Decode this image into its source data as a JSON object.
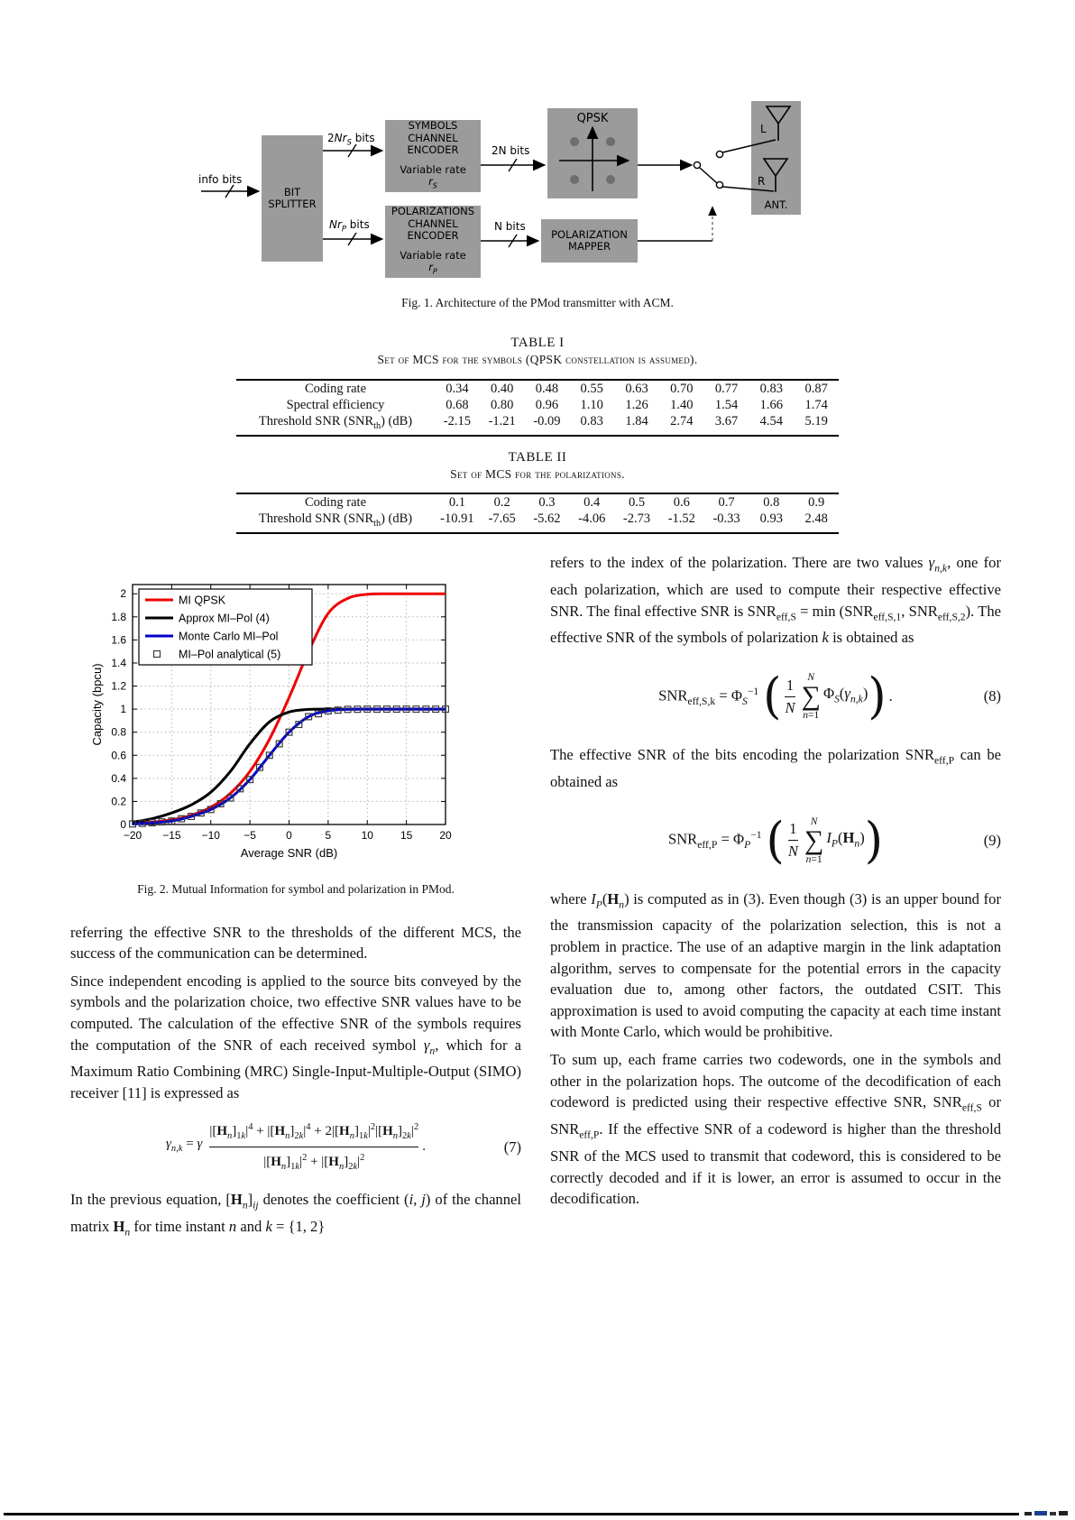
{
  "figure1": {
    "caption": "Fig. 1.   Architecture of the PMod transmitter with ACM.",
    "info_bits": "info bits",
    "bit_splitter": "BIT<br>SPLITTER",
    "enc_sym_name": "SYMBOLS<br>CHANNEL<br>ENCODER",
    "enc_sym_rate": "Variable rate<br><i>r<sub>S</sub></i>",
    "enc_pol_name": "POLARIZATIONS<br>CHANNEL<br>ENCODER",
    "enc_pol_rate": "Variable rate<br><i>r<sub>P</sub></i>",
    "qpsk": "QPSK",
    "pol_mapper": "POLARIZATION<br>MAPPER",
    "bits_2nrs": "2<i>Nr<sub>S</sub></i> bits",
    "bits_2n": "2N bits",
    "bits_nrp": "<i>Nr<sub>P</sub></i> bits",
    "bits_n": "N bits",
    "ant": "ANT.",
    "ant_l": "L",
    "ant_r": "R"
  },
  "table1": {
    "title": "TABLE I",
    "subtitle": "Set of MCS for the symbols (QPSK constellation is assumed).",
    "rows": [
      {
        "label": "Coding rate",
        "values": [
          "0.34",
          "0.40",
          "0.48",
          "0.55",
          "0.63",
          "0.70",
          "0.77",
          "0.83",
          "0.87"
        ]
      },
      {
        "label": "Spectral efficiency",
        "values": [
          "0.68",
          "0.80",
          "0.96",
          "1.10",
          "1.26",
          "1.40",
          "1.54",
          "1.66",
          "1.74"
        ]
      },
      {
        "label": "Threshold SNR (SNR<sub>th</sub>) (dB)",
        "values": [
          "-2.15",
          "-1.21",
          "-0.09",
          "0.83",
          "1.84",
          "2.74",
          "3.67",
          "4.54",
          "5.19"
        ]
      }
    ]
  },
  "table2": {
    "title": "TABLE II",
    "subtitle": "Set of MCS for the polarizations.",
    "rows": [
      {
        "label": "Coding rate",
        "values": [
          "0.1",
          "0.2",
          "0.3",
          "0.4",
          "0.5",
          "0.6",
          "0.7",
          "0.8",
          "0.9"
        ]
      },
      {
        "label": "Threshold SNR (SNR<sub>th</sub>) (dB)",
        "values": [
          "-10.91",
          "-7.65",
          "-5.62",
          "-4.06",
          "-2.73",
          "-1.52",
          "-0.33",
          "0.93",
          "2.48"
        ]
      }
    ]
  },
  "figure2": {
    "caption": "Fig. 2.   Mutual Information for symbol and polarization in PMod."
  },
  "chart_data": {
    "type": "line",
    "title": "",
    "xlabel": "Average SNR (dB)",
    "ylabel": "Capacity (bpcu)",
    "xlim": [
      -20,
      20
    ],
    "ylim": [
      0,
      2.08
    ],
    "grid": true,
    "legend_position": "top-left",
    "xticks": [
      -20,
      -15,
      -10,
      -5,
      0,
      5,
      10,
      15,
      20
    ],
    "xtick_labels": [
      "−20",
      "−15",
      "−10",
      "−5",
      "0",
      "5",
      "10",
      "15",
      "20"
    ],
    "yticks": [
      0,
      0.2,
      0.4,
      0.6,
      0.8,
      1.0,
      1.2,
      1.4,
      1.6,
      1.8,
      2.0
    ],
    "ytick_labels": [
      "0",
      "0.2",
      "0.4",
      "0.6",
      "0.8",
      "1",
      "1.2",
      "1.4",
      "1.6",
      "1.8",
      "2"
    ],
    "x": [
      -20,
      -17.5,
      -15,
      -12.5,
      -10,
      -7.5,
      -5,
      -2.5,
      0,
      2.5,
      5,
      7.5,
      10,
      12.5,
      15,
      17.5,
      20
    ],
    "series": [
      {
        "name": "MI QPSK",
        "color": "#ee0000",
        "width": 3,
        "values": [
          0.01,
          0.02,
          0.04,
          0.08,
          0.15,
          0.27,
          0.46,
          0.74,
          1.1,
          1.5,
          1.83,
          1.96,
          1.995,
          2.0,
          2.0,
          2.0,
          2.0
        ]
      },
      {
        "name": "Approx MI–Pol (4)",
        "color": "#000000",
        "width": 3,
        "values": [
          0.02,
          0.05,
          0.1,
          0.17,
          0.28,
          0.46,
          0.7,
          0.89,
          0.975,
          0.998,
          1.0,
          1.0,
          1.0,
          1.0,
          1.0,
          1.0,
          1.0
        ]
      },
      {
        "name": "Monte Carlo MI–Pol",
        "color": "#0000cc",
        "width": 3,
        "values": [
          0.005,
          0.015,
          0.03,
          0.07,
          0.13,
          0.23,
          0.39,
          0.6,
          0.8,
          0.935,
          0.985,
          0.998,
          1.0,
          1.0,
          1.0,
          1.0,
          1.0
        ]
      },
      {
        "name": "MI–Pol analytical (5)",
        "color": "#3a3a3a",
        "marker": "square",
        "follows": 2,
        "marker_step": 1.25
      }
    ]
  },
  "left_column": {
    "p1": "referring the effective SNR to the thresholds of the different MCS, the success of the communication can be determined.",
    "p2": "Since independent encoding is applied to the source bits conveyed by the symbols and the polarization choice, two effective SNR values have to be computed. The calculation of the effective SNR of the symbols requires the computation of the SNR of each received symbol <i>γ<sub>n</sub></i>, which for a Maximum Ratio Combining (MRC) Single-Input-Multiple-Output (SIMO) receiver [11] is expressed as",
    "eq7": {
      "lhs": "<i>γ<sub>n,k</sub></i> = <i>γ</i>",
      "num": "|[<b>H</b><sub><i>n</i></sub>]<sub>1<i>k</i></sub>|<sup>4</sup> + |[<b>H</b><sub><i>n</i></sub>]<sub>2<i>k</i></sub>|<sup>4</sup> + 2|[<b>H</b><sub><i>n</i></sub>]<sub>1<i>k</i></sub>|<sup>2</sup>|[<b>H</b><sub><i>n</i></sub>]<sub>2<i>k</i></sub>|<sup>2</sup>",
      "den": "|[<b>H</b><sub><i>n</i></sub>]<sub>1<i>k</i></sub>|<sup>2</sup> + |[<b>H</b><sub><i>n</i></sub>]<sub>2<i>k</i></sub>|<sup>2</sup>",
      "trail": ".",
      "tag": "(7)"
    },
    "p3": "In the previous equation, [<b>H</b><sub><i>n</i></sub>]<sub><i>ij</i></sub> denotes the coefficient (<i>i</i>, <i>j</i>) of the channel matrix <b>H</b><sub><i>n</i></sub> for time instant <i>n</i> and <i>k</i> = {1, 2}"
  },
  "right_column": {
    "p1": "refers to the index of the polarization. There are two values <i>γ<sub>n,k</sub></i>, one for each polarization, which are used to compute their respective effective SNR. The final effective SNR is SNR<sub>eff,S</sub> = min (SNR<sub>eff,S,1</sub>, SNR<sub>eff,S,2</sub>). The effective SNR of the symbols of polarization <i>k</i> is obtained as",
    "eq8": {
      "lhs": "SNR<sub>eff,S,k</sub> = Φ<sub><i>S</i></sub><sup>−1</sup>",
      "frac_num": "1",
      "frac_den": "<i>N</i>",
      "sum_top": "<i>N</i>",
      "sum_sym": "∑",
      "sum_bot": "<i>n</i>=1",
      "body": "Φ<sub><i>S</i></sub>(<i>γ<sub>n,k</sub></i>)",
      "trail": ".",
      "tag": "(8)"
    },
    "p2": "The effective SNR of the bits encoding the polarization SNR<sub>eff,P</sub> can be obtained as",
    "eq9": {
      "lhs": "SNR<sub>eff,P</sub> = Φ<sub><i>P</i></sub><sup>−1</sup>",
      "frac_num": "1",
      "frac_den": "<i>N</i>",
      "sum_top": "<i>N</i>",
      "sum_sym": "∑",
      "sum_bot": "<i>n</i>=1",
      "body": "<i>I<sub>P</sub></i>(<b>H</b><sub><i>n</i></sub>)",
      "trail": "",
      "tag": "(9)"
    },
    "p3": "where <i>I<sub>P</sub></i>(<b>H</b><sub><i>n</i></sub>) is computed as in (3). Even though (3) is an upper bound for the transmission capacity of the polarization selection, this is not a problem in practice. The use of an adaptive margin in the link adaptation algorithm, serves to compensate for the potential errors in the capacity evaluation due to, among other factors, the outdated CSIT. This approximation is used to avoid computing the capacity at each time instant with Monte Carlo, which would be prohibitive.",
    "p4": "To sum up, each frame carries two codewords, one in the symbols and other in the polarization hops. The outcome of the decodification of each codeword is predicted using their respective effective SNR, SNR<sub>eff,S</sub> or SNR<sub>eff,P</sub>. If the effective SNR of a codeword is higher than the threshold SNR of the MCS used to transmit that codeword, this is considered to be correctly decoded and if it is lower, an error is assumed to occur in the decodification."
  }
}
